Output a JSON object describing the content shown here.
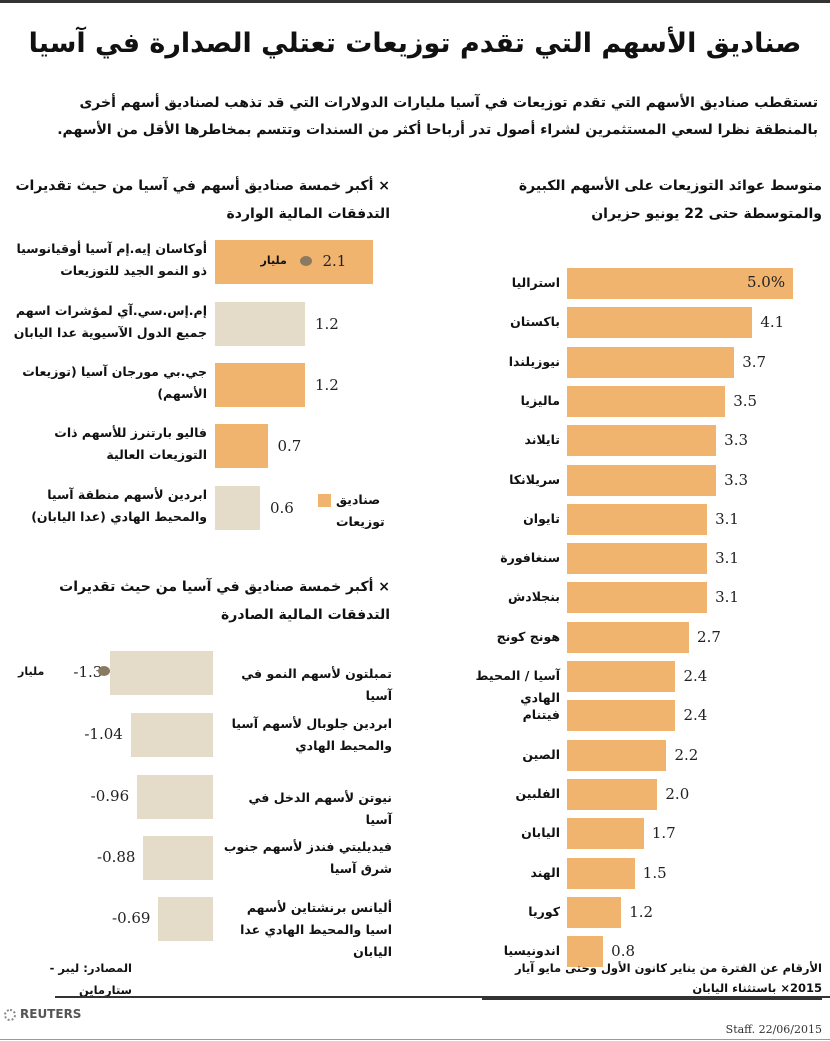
{
  "title": "صناديق الأسهم التي تقدم توزيعات تعتلي الصدارة في آسيا",
  "subtitle": "تستقطب صناديق الأسهم التي تقدم توزيعات في آسيا مليارات الدولارات التي قد تذهب لصناديق أسهم أخرى بالمنطقة نظرا لسعي المستثمرين لشراء أصول تدر أرباحا أكثر من السندات وتتسم بمخاطرها الأقل من الأسهم.",
  "colors": {
    "dividend_fund": "#f0b46e",
    "other_fund": "#e4dcc8"
  },
  "chart_data": [
    {
      "type": "bar",
      "title": "متوسط عوائد التوزيعات على الأسهم الكبيرة والمتوسطة حتى 22 يونيو حزيران",
      "categories": [
        "استراليا",
        "باكستان",
        "نيوزيلندا",
        "ماليزيا",
        "تايلاند",
        "سريلانكا",
        "تايوان",
        "سنغافورة",
        "بنجلادش",
        "هونج كونج",
        "آسيا / المحيط الهادي",
        "فيتنام",
        "الصين",
        "الفلبين",
        "اليابان",
        "الهند",
        "كوريا",
        "اندونيسيا"
      ],
      "values": [
        5.0,
        4.1,
        3.7,
        3.5,
        3.3,
        3.3,
        3.1,
        3.1,
        3.1,
        2.7,
        2.4,
        2.4,
        2.2,
        2.0,
        1.7,
        1.5,
        1.2,
        0.8
      ],
      "value_labels": [
        "5.0%",
        "4.1",
        "3.7",
        "3.5",
        "3.3",
        "3.3",
        "3.1",
        "3.1",
        "3.1",
        "2.7",
        "2.4",
        "2.4",
        "2.2",
        "2.0",
        "1.7",
        "1.5",
        "1.2",
        "0.8"
      ],
      "orientation": "horizontal",
      "footnote": "الأرقام عن الفترة من يناير كانون الأول وحتى مايو آيار 2015× باستثناء اليابان"
    },
    {
      "type": "bar",
      "title": "× أكبر خمسة صناديق أسهم في آسيا من حيث تقديرات التدفقات المالية الواردة",
      "unit": "مليار",
      "categories": [
        "أوكاسان إيه.إم آسيا أوقيانوسيا ذو النمو الجيد للتوزيعات",
        "إم.إس.سي.آي لمؤشرات اسهم جميع الدول الآسيوية عدا اليابان",
        "جي.بي مورجان آسيا (توزيعات الأسهم)",
        "فاليو بارتنرز للأسهم ذات التوزيعات العالية",
        "ابردين لأسهم منطقة آسيا والمحيط الهادي (عدا اليابان)"
      ],
      "values": [
        2.1,
        1.2,
        1.2,
        0.7,
        0.6
      ],
      "value_labels": [
        "2.1",
        "1.2",
        "1.2",
        "0.7",
        "0.6"
      ],
      "dividend_fund": [
        true,
        false,
        true,
        true,
        false
      ],
      "legend": [
        "صناديق توزيعات"
      ],
      "legend_position": "right"
    },
    {
      "type": "bar",
      "title": "× أكبر خمسة صناديق في آسيا من حيث تقديرات التدفقات المالية الصادرة",
      "unit": "مليار",
      "categories": [
        "تمبلتون لأسهم النمو في آسيا",
        "ابردين جلوبال لأسهم آسيا والمحيط الهادي",
        "نيوتن لأسهم الدخل في آسيا",
        "فيديليتي فندز لأسهم جنوب شرق آسيا",
        "أليانس برنشتاين لأسهم اسيا والمحيط الهادي عدا اليابان"
      ],
      "values": [
        -1.3,
        -1.04,
        -0.96,
        -0.88,
        -0.69
      ],
      "value_labels": [
        "1.3-",
        "1.04-",
        "0.96-",
        "0.88-",
        "0.69-"
      ]
    }
  ],
  "source": "المصادر: ليبر - ستارماين",
  "brand": "REUTERS",
  "credit": "Staff. 22/06/2015"
}
